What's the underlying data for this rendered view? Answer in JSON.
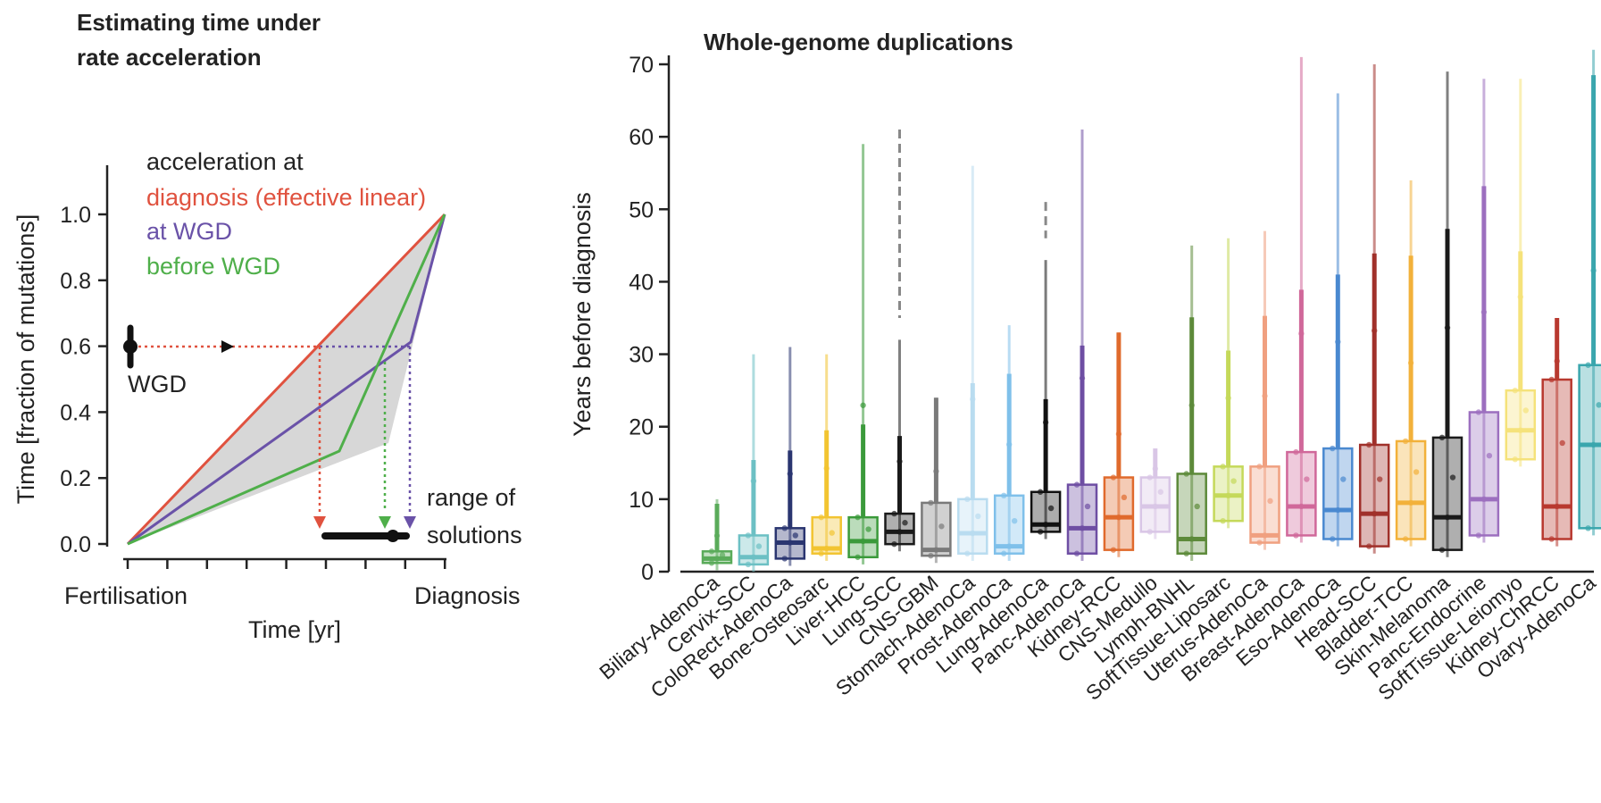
{
  "left_panel": {
    "title_line1": "Estimating time under",
    "title_line2": "rate acceleration",
    "ylabel": "Time [fraction of mutations]",
    "xlabel": "Time [yr]",
    "x_start_label": "Fertilisation",
    "x_end_label": "Diagnosis",
    "y_ticks": [
      "0.0",
      "0.2",
      "0.4",
      "0.6",
      "0.8",
      "1.0"
    ],
    "legend": [
      {
        "text": "acceleration at",
        "color": "#222222"
      },
      {
        "text": "diagnosis (effective linear)",
        "color": "#e0523f"
      },
      {
        "text": "at WGD",
        "color": "#6a52a8"
      },
      {
        "text": "before WGD",
        "color": "#4faf4a"
      }
    ],
    "wgd_label": "WGD",
    "range_label_line1": "range of",
    "range_label_line2": "solutions",
    "colors": {
      "red": "#e0523f",
      "purple": "#6a52a8",
      "green": "#4faf4a",
      "shade": "#d7d7d7"
    }
  },
  "right_panel": {
    "title": "Whole-genome duplications",
    "ylabel": "Years before diagnosis",
    "y_ticks": [
      "0",
      "10",
      "20",
      "30",
      "40",
      "50",
      "60",
      "70"
    ]
  },
  "chart_data": {
    "type": "box",
    "title": "Whole-genome duplications",
    "ylabel": "Years before diagnosis",
    "ylim": [
      0,
      72
    ],
    "categories": [
      "Biliary-AdenoCa",
      "Cervix-SCC",
      "ColoRect-AdenoCa",
      "Bone-Osteosarc",
      "Liver-HCC",
      "Lung-SCC",
      "CNS-GBM",
      "Stomach-AdenoCa",
      "Prost-AdenoCa",
      "Lung-AdenoCa",
      "Panc-AdenoCa",
      "Kidney-RCC",
      "CNS-Medullo",
      "Lymph-BNHL",
      "SoftTissue-Liposarc",
      "Uterus-AdenoCa",
      "Breast-AdenoCa",
      "Eso-AdenoCa",
      "Head-SCC",
      "Bladder-TCC",
      "Skin-Melanoma",
      "Panc-Endocrine",
      "SoftTissue-Leiomyo",
      "Kidney-ChRCC",
      "Ovary-AdenoCa"
    ],
    "boxes": [
      {
        "color": "#5aab5a",
        "q1": 1.2,
        "median": 1.8,
        "q3": 2.8,
        "whisker_hi": 10,
        "outlier_hi": null
      },
      {
        "color": "#6cc0c4",
        "q1": 1.0,
        "median": 2.0,
        "q3": 5.0,
        "whisker_hi": 30,
        "outlier_hi": null
      },
      {
        "color": "#2a3570",
        "q1": 1.8,
        "median": 4.0,
        "q3": 6.0,
        "whisker_hi": 31,
        "outlier_hi": null
      },
      {
        "color": "#f2c431",
        "q1": 2.5,
        "median": 3.2,
        "q3": 7.5,
        "whisker_hi": 30,
        "outlier_hi": null
      },
      {
        "color": "#3b9a3b",
        "q1": 2.0,
        "median": 4.2,
        "q3": 7.5,
        "whisker_hi": 59,
        "outlier_hi": null
      },
      {
        "color": "#1a1a1a",
        "q1": 3.8,
        "median": 5.5,
        "q3": 8.0,
        "whisker_hi": 32,
        "outlier_hi": 61
      },
      {
        "color": "#7a7a7a",
        "q1": 2.2,
        "median": 3.0,
        "q3": 9.5,
        "whisker_hi": 24,
        "outlier_hi": null
      },
      {
        "color": "#b9dcf0",
        "q1": 2.5,
        "median": 5.3,
        "q3": 10.0,
        "whisker_hi": 56,
        "outlier_hi": null
      },
      {
        "color": "#7fc0ea",
        "q1": 2.5,
        "median": 3.5,
        "q3": 10.5,
        "whisker_hi": 34,
        "outlier_hi": null
      },
      {
        "color": "#111111",
        "q1": 5.5,
        "median": 6.5,
        "q3": 11.0,
        "whisker_hi": 43,
        "outlier_hi": 51
      },
      {
        "color": "#6e4ea3",
        "q1": 2.5,
        "median": 6.0,
        "q3": 12.0,
        "whisker_hi": 61,
        "outlier_hi": null
      },
      {
        "color": "#e06a2c",
        "q1": 3.0,
        "median": 7.5,
        "q3": 13.0,
        "whisker_hi": 33,
        "outlier_hi": null
      },
      {
        "color": "#d9c6e6",
        "q1": 5.5,
        "median": 9.0,
        "q3": 13.0,
        "whisker_hi": 17,
        "outlier_hi": null
      },
      {
        "color": "#5d8a3a",
        "q1": 2.5,
        "median": 4.5,
        "q3": 13.5,
        "whisker_hi": 45,
        "outlier_hi": null
      },
      {
        "color": "#c5d95a",
        "q1": 7.0,
        "median": 10.5,
        "q3": 14.5,
        "whisker_hi": 46,
        "outlier_hi": null
      },
      {
        "color": "#f0a080",
        "q1": 4.0,
        "median": 5.0,
        "q3": 14.5,
        "whisker_hi": 47,
        "outlier_hi": null
      },
      {
        "color": "#d0689a",
        "q1": 5.0,
        "median": 9.0,
        "q3": 16.5,
        "whisker_hi": 71,
        "outlier_hi": null
      },
      {
        "color": "#4a89d0",
        "q1": 4.5,
        "median": 8.5,
        "q3": 17.0,
        "whisker_hi": 66,
        "outlier_hi": null
      },
      {
        "color": "#a0302a",
        "q1": 3.5,
        "median": 8.0,
        "q3": 17.5,
        "whisker_hi": 70,
        "outlier_hi": null
      },
      {
        "color": "#f2b13a",
        "q1": 4.5,
        "median": 9.5,
        "q3": 18.0,
        "whisker_hi": 54,
        "outlier_hi": null
      },
      {
        "color": "#1a1a1a",
        "q1": 3.0,
        "median": 7.5,
        "q3": 18.5,
        "whisker_hi": 69,
        "outlier_hi": null
      },
      {
        "color": "#9c6fbf",
        "q1": 5.0,
        "median": 10.0,
        "q3": 22.0,
        "whisker_hi": 68,
        "outlier_hi": null
      },
      {
        "color": "#f5e27a",
        "q1": 15.5,
        "median": 19.5,
        "q3": 25.0,
        "whisker_hi": 68,
        "outlier_hi": null
      },
      {
        "color": "#b8392f",
        "q1": 4.5,
        "median": 9.0,
        "q3": 26.5,
        "whisker_hi": 35,
        "outlier_hi": null
      },
      {
        "color": "#3aa6ad",
        "q1": 6.0,
        "median": 17.5,
        "q3": 28.5,
        "whisker_hi": 72,
        "outlier_hi": null
      }
    ]
  }
}
